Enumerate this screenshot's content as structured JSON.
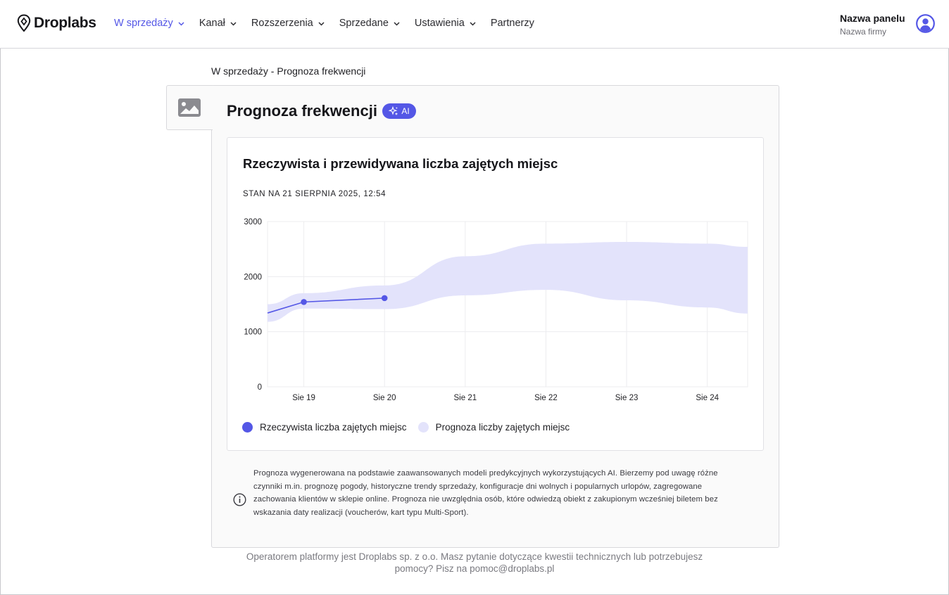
{
  "brand": {
    "name": "Droplabs"
  },
  "nav": [
    {
      "label": "W sprzedaży",
      "active": true,
      "has_dropdown": true
    },
    {
      "label": "Kanał",
      "active": false,
      "has_dropdown": true
    },
    {
      "label": "Rozszerzenia",
      "active": false,
      "has_dropdown": true
    },
    {
      "label": "Sprzedane",
      "active": false,
      "has_dropdown": true
    },
    {
      "label": "Ustawienia",
      "active": false,
      "has_dropdown": true
    },
    {
      "label": "Partnerzy",
      "active": false,
      "has_dropdown": false
    }
  ],
  "user": {
    "panel_name": "Nazwa panelu",
    "company_name": "Nazwa firmy"
  },
  "breadcrumb": "W sprzedaży - Prognoza frekwencji",
  "page": {
    "title": "Prognoza frekwencji",
    "ai_badge": "AI",
    "chart_title": "Rzeczywista i przewidywana liczba zajętych miejsc",
    "chart_subtitle": "STAN NA 21 SIERPNIA 2025, 12:54",
    "legend": {
      "actual": "Rzeczywista liczba zajętych miejsc",
      "forecast": "Prognoza liczby zajętych miejsc"
    },
    "note": "Prognoza wygenerowana na podstawie zaawansowanych modeli predykcyjnych wykorzystujących AI. Bierzemy pod uwagę różne czynniki m.in. prognozę pogody, historyczne trendy sprzedaży, konfiguracje dni wolnych i popularnych urlopów, zagregowane zachowania klientów w sklepie online. Prognoza nie uwzględnia osób, które odwiedzą obiekt z zakupionym wcześniej biletem bez wskazania daty realizacji (voucherów, kart typu Multi-Sport)."
  },
  "footer": {
    "line1": "Operatorem platformy jest Droplabs sp. z o.o. Masz pytanie dotyczące kwestii technicznych lub potrzebujesz",
    "line2": "pomocy? Pisz na pomoc@droplabs.pl"
  },
  "colors": {
    "accent": "#5457e6",
    "band": "#e3e3fb",
    "grid": "#ececef"
  },
  "chart_data": {
    "type": "line",
    "x_ticks": [
      "Sie 19",
      "Sie 20",
      "Sie 21",
      "Sie 22",
      "Sie 23",
      "Sie 24"
    ],
    "ylim": [
      0,
      3000
    ],
    "y_ticks": [
      0,
      1000,
      2000,
      3000
    ],
    "xlim": [
      18.55,
      24.5
    ],
    "grid": true,
    "legend_position": "bottom-left",
    "series": [
      {
        "name": "Rzeczywista liczba zajętych miejsc",
        "kind": "line",
        "x": [
          18.55,
          19,
          20
        ],
        "y": [
          1340,
          1540,
          1610
        ],
        "markers_at": [
          19,
          20
        ]
      },
      {
        "name": "Prognoza liczby zajętych miejsc",
        "kind": "band",
        "x": [
          18.55,
          19,
          20,
          21,
          22,
          23,
          24,
          24.5
        ],
        "lower": [
          1180,
          1420,
          1410,
          1660,
          1760,
          1570,
          1440,
          1330
        ],
        "upper": [
          1500,
          1700,
          1840,
          2370,
          2600,
          2630,
          2600,
          2540
        ]
      }
    ]
  }
}
